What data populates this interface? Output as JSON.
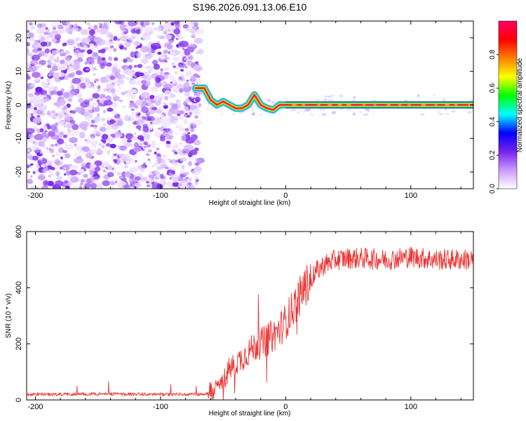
{
  "figure_title": "S196.2026.091.13.06.E10",
  "chart_data": [
    {
      "type": "heatmap",
      "title": "S196.2026.091.13.06.E10",
      "xlabel": "Height of straight line (km)",
      "ylabel": "Frequency (Hz)",
      "xlim": [
        -207,
        150
      ],
      "ylim": [
        -25,
        25
      ],
      "xticks": [
        -200,
        -100,
        0,
        100
      ],
      "yticks": [
        -20,
        -10,
        0,
        10,
        20
      ],
      "xtick_labels": [
        "-200",
        "-100",
        "0",
        "100"
      ],
      "ytick_labels": [
        "-20",
        "-10",
        "0",
        "10",
        "20"
      ],
      "noise_region_x": [
        -207,
        -68
      ],
      "tracked_frequency": {
        "x": [
          -72,
          -65,
          -60,
          -55,
          -50,
          -45,
          -40,
          -35,
          -30,
          -25,
          -20,
          -15,
          -10,
          -5,
          0,
          10,
          40,
          100,
          150
        ],
        "y": [
          5,
          5,
          1.5,
          0,
          1,
          0,
          -1,
          -1,
          0,
          3,
          0,
          -1,
          -1.5,
          0,
          0,
          0,
          0,
          0,
          0
        ]
      },
      "colorbar": {
        "label": "Normalized spectral amplitude",
        "range": [
          0,
          1
        ],
        "ticks": [
          0.0,
          0.2,
          0.4,
          0.6,
          0.8
        ],
        "tick_labels": [
          "0.0",
          "0.2",
          "0.4",
          "0.6",
          "0.8"
        ],
        "colors": [
          "#ffffff",
          "#cc99ff",
          "#7722ee",
          "#0000ff",
          "#00ffff",
          "#00ff00",
          "#ffff00",
          "#ff8000",
          "#ff0000",
          "#ff0066"
        ]
      }
    },
    {
      "type": "line",
      "title": "",
      "xlabel": "Height of straight line (km)",
      "ylabel": "SNR (10 * v/v)",
      "xlim": [
        -207,
        150
      ],
      "ylim": [
        0,
        600
      ],
      "xticks": [
        -200,
        -100,
        0,
        100
      ],
      "yticks": [
        0,
        200,
        400,
        600
      ],
      "xtick_labels": [
        "-200",
        "-100",
        "0",
        "100"
      ],
      "ytick_labels": [
        "0",
        "200",
        "400",
        "600"
      ],
      "line_color": "#ee3333",
      "series": [
        {
          "name": "SNR",
          "x": [
            -207,
            -180,
            -150,
            -120,
            -90,
            -70,
            -62,
            -55,
            -50,
            -45,
            -40,
            -35,
            -30,
            -25,
            -20,
            -15,
            -10,
            -5,
            0,
            5,
            10,
            15,
            20,
            25,
            30,
            40,
            50,
            60,
            80,
            100,
            120,
            150
          ],
          "y": [
            20,
            20,
            22,
            20,
            20,
            20,
            22,
            40,
            70,
            110,
            130,
            150,
            170,
            190,
            200,
            215,
            230,
            250,
            280,
            320,
            360,
            400,
            430,
            460,
            480,
            500,
            505,
            505,
            500,
            510,
            500,
            500
          ]
        }
      ]
    }
  ]
}
